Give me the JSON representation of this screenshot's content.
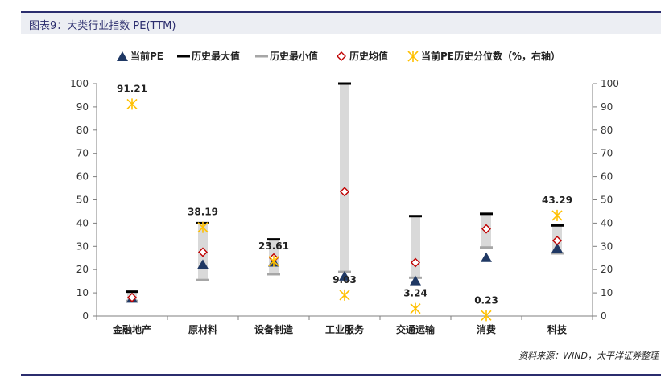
{
  "figure": {
    "title": "图表9：大类行业指数 PE(TTM)",
    "source": "资料来源：WIND，太平洋证券整理"
  },
  "chart_data": {
    "type": "range-bar",
    "categories": [
      "金融地产",
      "原材料",
      "设备制造",
      "工业服务",
      "交通运输",
      "消费",
      "科技"
    ],
    "y_left": {
      "min": 0,
      "max": 100,
      "ticks": [
        0,
        10,
        20,
        30,
        40,
        50,
        60,
        70,
        80,
        90,
        100
      ]
    },
    "y_right": {
      "min": 0,
      "max": 100,
      "ticks": [
        0,
        10,
        20,
        30,
        40,
        50,
        60,
        70,
        80,
        90,
        100
      ]
    },
    "legend_position": "top",
    "series": [
      {
        "name": "当前PE",
        "marker": "triangle",
        "color": "#1f3864",
        "axis": "left",
        "values": [
          7.5,
          22,
          23,
          17,
          15,
          25,
          29
        ]
      },
      {
        "name": "历史最大值",
        "marker": "dash",
        "color": "#000000",
        "axis": "left",
        "values": [
          10.5,
          40,
          33,
          100,
          43,
          44,
          39
        ]
      },
      {
        "name": "历史最小值",
        "marker": "dash",
        "color": "#a6a6a6",
        "axis": "left",
        "values": [
          6.5,
          15.5,
          18,
          19,
          16.5,
          29.5,
          27
        ]
      },
      {
        "name": "历史均值",
        "marker": "diamond",
        "color": "#c00000",
        "axis": "left",
        "values": [
          8,
          27.5,
          25,
          53.5,
          23,
          37.5,
          32.5
        ]
      },
      {
        "name": "当前PE历史分位数（%，右轴）",
        "marker": "star",
        "color": "#ffc000",
        "axis": "right",
        "values": [
          91.21,
          38.19,
          23.61,
          9.03,
          3.24,
          0.23,
          43.29
        ]
      }
    ],
    "data_labels": [
      "91.21",
      "38.19",
      "23.61",
      "9.03",
      "3.24",
      "0.23",
      "43.29"
    ]
  },
  "colors": {
    "range_fill": "#d9d9d9",
    "accent": "#2b2d6e"
  }
}
